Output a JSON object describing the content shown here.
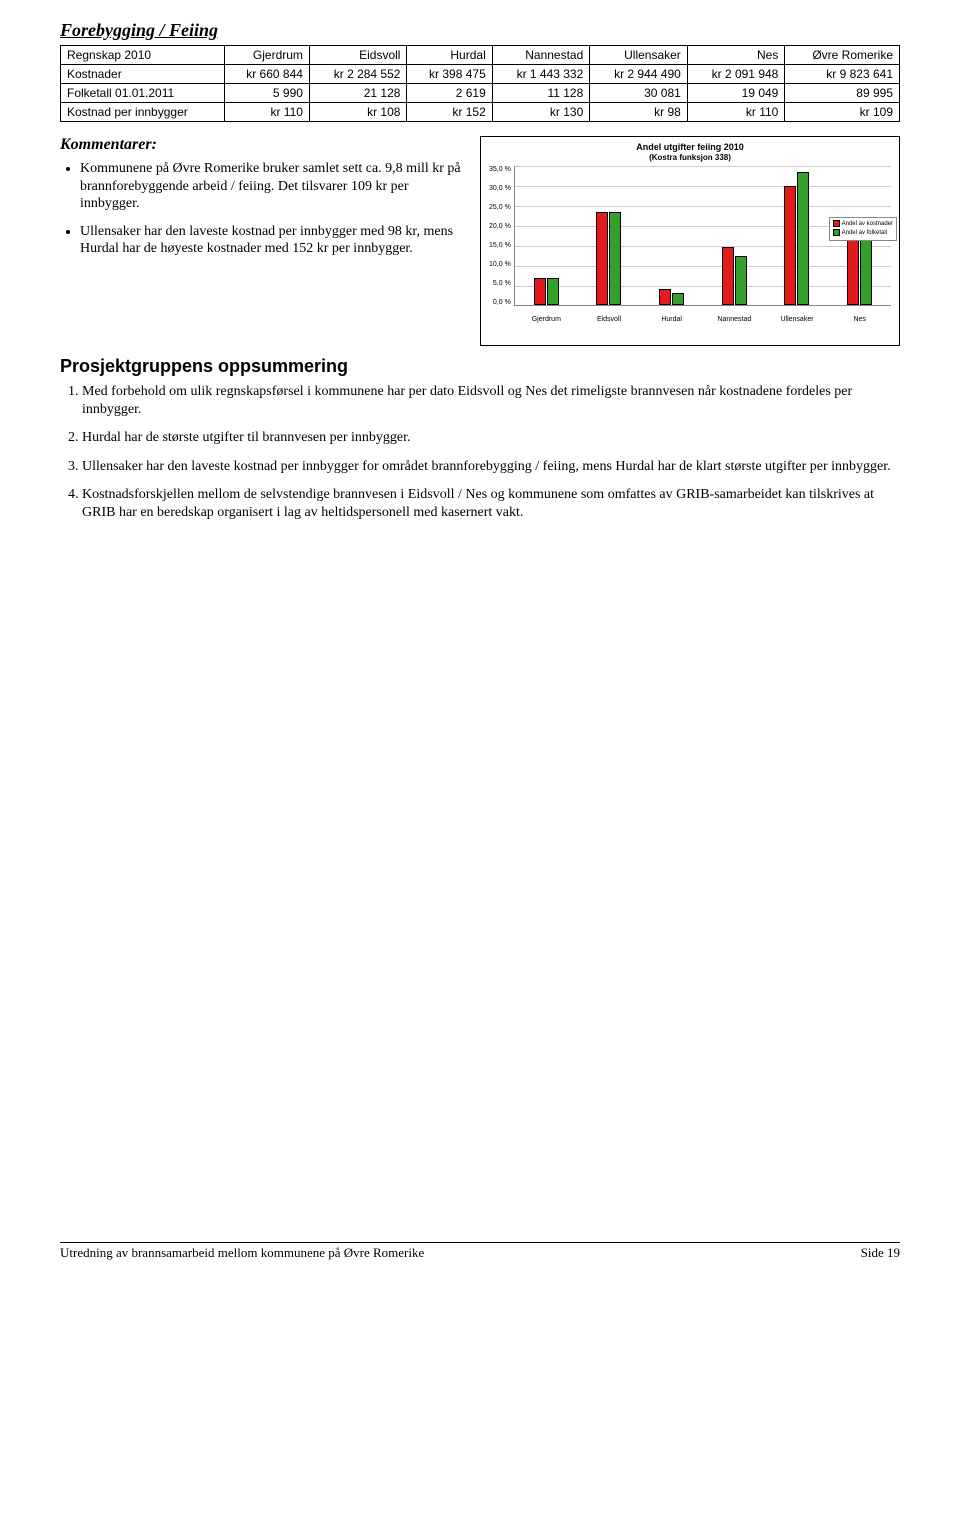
{
  "heading": "Forebygging / Feiing",
  "table": {
    "headers": [
      "Regnskap 2010",
      "Gjerdrum",
      "Eidsvoll",
      "Hurdal",
      "Nannestad",
      "Ullensaker",
      "Nes",
      "Øvre Romerike"
    ],
    "rows": [
      {
        "label": "Kostnader",
        "cells": [
          "kr   660 844",
          "kr  2 284 552",
          "kr   398 475",
          "kr  1 443 332",
          "kr  2 944 490",
          "kr  2 091 948",
          "kr  9 823 641"
        ]
      },
      {
        "label": "Folketall 01.01.2011",
        "cells": [
          "5 990",
          "21 128",
          "2 619",
          "11 128",
          "30 081",
          "19 049",
          "89 995"
        ]
      },
      {
        "label": "Kostnad per innbygger",
        "cells": [
          "kr          110",
          "kr          108",
          "kr          152",
          "kr          130",
          "kr            98",
          "kr          110",
          "kr          109"
        ]
      }
    ]
  },
  "kommentarer_h": "Kommentarer:",
  "bullets": [
    "Kommunene på Øvre Romerike bruker samlet sett ca. 9,8 mill kr på brannforebyggende arbeid / feiing. Det tilsvarer 109 kr per innbygger.",
    "Ullensaker har den laveste kostnad per innbygger med 98 kr, mens Hurdal har de høyeste kostnader med 152 kr per innbygger."
  ],
  "chart": {
    "title": "Andel utgifter feiing 2010",
    "subtitle": "(Kostra funksjon 338)",
    "ylim": [
      0,
      35
    ],
    "ytick_step": 5,
    "yticks": [
      "35,0 %",
      "30,0 %",
      "25,0 %",
      "20,0 %",
      "15,0 %",
      "10,0 %",
      "5,0 %",
      "0,0 %"
    ],
    "categories": [
      "Gjerdrum",
      "Eidsvoll",
      "Hurdal",
      "Nannestad",
      "Ullensaker",
      "Nes"
    ],
    "series": [
      {
        "name": "Andel av kostnader",
        "color": "#e31a1c",
        "values": [
          6.7,
          23.3,
          4.1,
          14.7,
          30.0,
          21.3
        ]
      },
      {
        "name": "Andel av folketall",
        "color": "#33a02c",
        "values": [
          6.7,
          23.5,
          2.9,
          12.4,
          33.4,
          21.2
        ]
      }
    ],
    "legend": [
      "Andel av kostnader",
      "Andel av folketall"
    ],
    "grid_color": "#cccccc",
    "bg": "#ffffff"
  },
  "summary_h": "Prosjektgruppens oppsummering",
  "numbered": [
    "Med forbehold om ulik regnskapsførsel i kommunene har per dato Eidsvoll og Nes det rimeligste brannvesen når kostnadene fordeles per innbygger.",
    "Hurdal har de største utgifter til brannvesen per innbygger.",
    "Ullensaker har den laveste kostnad per innbygger for området brannforebygging / feiing, mens Hurdal har de klart største utgifter per innbygger.",
    "Kostnadsforskjellen mellom de selvstendige brannvesen i Eidsvoll / Nes og kommunene som omfattes av GRIB-samarbeidet kan tilskrives at GRIB har en beredskap organisert i lag av heltidspersonell med kasernert vakt."
  ],
  "footer_left": "Utredning av brannsamarbeid mellom kommunene på Øvre Romerike",
  "footer_right": "Side 19"
}
